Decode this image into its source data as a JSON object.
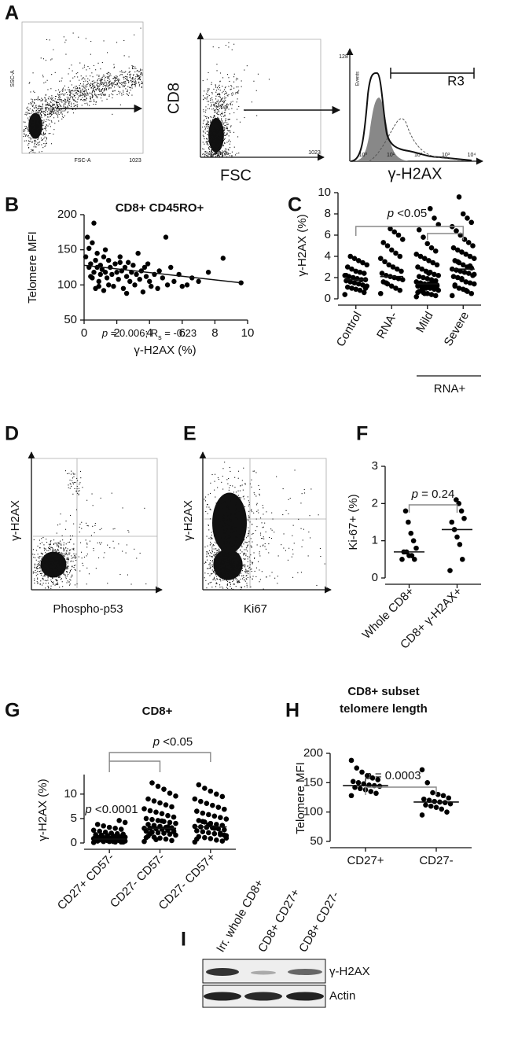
{
  "chart_data": [
    {
      "type": "scatter",
      "panel": "B",
      "title": "CD8+ CD45RO+",
      "x_label": "γ-H2AX (%)",
      "y_label": "Telomere MFI",
      "annotation": "p = 0.006; Rs = -0.23",
      "x": [
        0.1,
        0.2,
        0.3,
        0.3,
        0.4,
        0.5,
        0.5,
        0.6,
        0.6,
        0.7,
        0.7,
        0.8,
        0.8,
        0.9,
        1.0,
        1.0,
        1.1,
        1.2,
        1.2,
        1.3,
        1.4,
        1.5,
        1.5,
        1.6,
        1.7,
        1.8,
        1.9,
        2.0,
        2.1,
        2.2,
        2.3,
        2.4,
        2.5,
        2.6,
        2.7,
        2.8,
        2.9,
        3.0,
        3.1,
        3.2,
        3.3,
        3.4,
        3.5,
        3.6,
        3.7,
        3.8,
        3.9,
        4.0,
        4.1,
        4.3,
        4.5,
        4.6,
        4.8,
        5.0,
        5.1,
        5.3,
        5.5,
        5.8,
        6.0,
        6.3,
        6.6,
        7.0,
        7.6,
        8.5,
        9.6,
        0.4,
        0.9,
        1.3,
        2.2,
        2.6
      ],
      "y": [
        140,
        168,
        152,
        125,
        130,
        160,
        110,
        188,
        118,
        135,
        95,
        145,
        125,
        105,
        128,
        115,
        122,
        92,
        140,
        118,
        110,
        135,
        100,
        125,
        115,
        98,
        130,
        118,
        108,
        140,
        120,
        95,
        125,
        112,
        132,
        105,
        118,
        128,
        100,
        115,
        145,
        108,
        120,
        90,
        125,
        112,
        130,
        105,
        98,
        115,
        95,
        120,
        110,
        168,
        100,
        125,
        105,
        115,
        98,
        100,
        110,
        105,
        118,
        138,
        103,
        112,
        98,
        150,
        132,
        88
      ],
      "trend_line": {
        "x": [
          0,
          9.6
        ],
        "y": [
          128,
          103
        ]
      },
      "xlim": [
        0,
        10
      ],
      "ylim": [
        50,
        200
      ],
      "xticks": [
        0,
        2,
        4,
        6,
        8,
        10
      ],
      "yticks": [
        50,
        100,
        150,
        200
      ],
      "color": "#000000"
    },
    {
      "type": "strip",
      "panel": "C",
      "y_label": "γ-H2AX (%)",
      "categories": [
        "Control",
        "RNA-",
        "Mild",
        "Severe"
      ],
      "values": [
        [
          0.4,
          0.6,
          0.8,
          0.9,
          1.0,
          1.1,
          1.2,
          1.3,
          1.4,
          1.5,
          1.6,
          1.7,
          1.8,
          1.8,
          1.9,
          2.0,
          2.1,
          2.2,
          2.4,
          2.5,
          2.6,
          2.8,
          3.0,
          3.2,
          3.4,
          3.6,
          3.8,
          4.0,
          2.2,
          1.0
        ],
        [
          0.5,
          0.8,
          1.0,
          1.2,
          1.4,
          1.6,
          1.8,
          1.9,
          2.0,
          2.1,
          2.2,
          2.4,
          2.6,
          2.8,
          3.0,
          3.2,
          3.5,
          3.8,
          4.0,
          4.3,
          4.6,
          5.0,
          5.3,
          5.6,
          6.0,
          6.3,
          6.6,
          1.5
        ],
        [
          0.2,
          0.3,
          0.4,
          0.5,
          0.6,
          0.7,
          0.8,
          0.9,
          1.0,
          1.0,
          1.1,
          1.2,
          1.2,
          1.3,
          1.4,
          1.4,
          1.5,
          1.6,
          1.7,
          1.8,
          1.9,
          2.0,
          2.1,
          2.2,
          2.3,
          2.5,
          2.6,
          2.8,
          3.0,
          3.2,
          3.4,
          3.6,
          3.8,
          4.0,
          4.2,
          4.5,
          4.8,
          5.2,
          5.8,
          6.5,
          7.0,
          7.6,
          8.5,
          1.1,
          0.8,
          0.6,
          1.3,
          1.6,
          2.4,
          0.5
        ],
        [
          0.3,
          0.5,
          0.7,
          0.9,
          1.0,
          1.2,
          1.4,
          1.5,
          1.6,
          1.8,
          2.0,
          2.1,
          2.2,
          2.4,
          2.5,
          2.6,
          2.7,
          2.8,
          2.9,
          3.0,
          3.2,
          3.4,
          3.6,
          3.8,
          4.0,
          4.2,
          4.4,
          4.6,
          4.8,
          5.0,
          5.3,
          5.6,
          6.0,
          6.4,
          6.8,
          7.2,
          7.6,
          8.0,
          9.6,
          1.3,
          2.3,
          3.1,
          0.8,
          1.9,
          3.5
        ]
      ],
      "medians": [
        1.8,
        2.1,
        1.4,
        2.8
      ],
      "annotations": [
        "p <0.05"
      ],
      "group_label": "RNA+",
      "ylim": [
        0,
        10
      ],
      "yticks": [
        0,
        2,
        4,
        6,
        8,
        10
      ],
      "color": "#000000"
    },
    {
      "type": "strip",
      "panel": "F",
      "y_label": "Ki-67+ (%)",
      "categories": [
        "Whole CD8+",
        "CD8+ γ-H2AX+"
      ],
      "values": [
        [
          0.5,
          0.5,
          0.6,
          0.6,
          0.7,
          0.7,
          0.8,
          1.0,
          1.2,
          1.5,
          1.8
        ],
        [
          0.2,
          0.5,
          0.9,
          1.1,
          1.3,
          1.5,
          1.6,
          1.8,
          2.0,
          2.1
        ]
      ],
      "medians": [
        0.7,
        1.3
      ],
      "annotations": [
        "p = 0.24"
      ],
      "ylim": [
        0,
        3
      ],
      "yticks": [
        0,
        1,
        2,
        3
      ],
      "color": "#000000"
    },
    {
      "type": "strip",
      "panel": "G",
      "title": "CD8+",
      "y_label": "γ-H2AX (%)",
      "categories": [
        "CD27+ CD57-",
        "CD27- CD57-",
        "CD27- CD57+"
      ],
      "values": [
        [
          0.1,
          0.2,
          0.2,
          0.3,
          0.3,
          0.4,
          0.4,
          0.5,
          0.5,
          0.5,
          0.6,
          0.6,
          0.7,
          0.7,
          0.8,
          0.8,
          0.8,
          0.9,
          0.9,
          1.0,
          1.0,
          1.1,
          1.2,
          1.2,
          1.3,
          1.4,
          1.5,
          1.6,
          1.7,
          1.8,
          1.9,
          2.0,
          2.2,
          2.4,
          2.6,
          2.8,
          3.0,
          3.2,
          3.5,
          3.8,
          4.2,
          4.6,
          0.3,
          0.6,
          1.0,
          1.4,
          0.2,
          0.9
        ],
        [
          0.3,
          0.5,
          0.8,
          1.0,
          1.2,
          1.4,
          1.6,
          1.8,
          2.0,
          2.1,
          2.2,
          2.4,
          2.5,
          2.6,
          2.8,
          2.9,
          3.0,
          3.0,
          3.1,
          3.2,
          3.4,
          3.6,
          3.8,
          4.0,
          4.2,
          4.4,
          4.6,
          4.8,
          5.0,
          5.3,
          5.6,
          6.0,
          6.3,
          6.6,
          7.0,
          7.4,
          7.8,
          8.2,
          8.6,
          9.0,
          9.6,
          10.2,
          11.0,
          11.6,
          12.3,
          1.1,
          2.3,
          3.3,
          4.5,
          0.7,
          1.9
        ],
        [
          0.2,
          0.4,
          0.6,
          0.9,
          1.1,
          1.3,
          1.5,
          1.7,
          1.9,
          2.1,
          2.3,
          2.5,
          2.7,
          2.9,
          3.1,
          3.2,
          3.3,
          3.4,
          3.6,
          3.8,
          4.0,
          4.3,
          4.6,
          4.9,
          5.2,
          5.5,
          5.8,
          6.1,
          6.5,
          6.9,
          7.3,
          7.7,
          8.1,
          8.5,
          9.0,
          9.5,
          10.0,
          10.6,
          11.2,
          11.9,
          1.0,
          2.0,
          3.0,
          3.7,
          4.4,
          0.8,
          1.6
        ]
      ],
      "medians": [
        0.8,
        3.0,
        3.3
      ],
      "annotations": [
        "p <0.05",
        "p <0.0001"
      ],
      "ylim": [
        0,
        14
      ],
      "yticks": [
        0,
        5,
        10
      ],
      "color": "#000000"
    },
    {
      "type": "strip",
      "panel": "H",
      "title": [
        "CD8+ subset",
        "telomere length"
      ],
      "y_label": "Telomere MFI",
      "categories": [
        "CD27+",
        "CD27-"
      ],
      "values": [
        [
          128,
          132,
          135,
          138,
          140,
          142,
          144,
          145,
          146,
          148,
          150,
          152,
          155,
          158,
          162,
          168,
          175,
          188
        ],
        [
          95,
          100,
          105,
          108,
          110,
          112,
          114,
          116,
          117,
          118,
          120,
          122,
          124,
          128,
          130,
          133,
          150,
          172
        ]
      ],
      "medians": [
        145,
        117
      ],
      "annotations": [
        "p = 0.0003"
      ],
      "ylim": [
        50,
        200
      ],
      "yticks": [
        50,
        100,
        150,
        200
      ],
      "color": "#000000"
    }
  ],
  "panel_A": {
    "letter": "A",
    "plot1": {
      "y_label": "SSC-A",
      "x_label": "FSC-A",
      "x_max_label": "1023"
    },
    "plot2": {
      "y_label": "CD8",
      "x_label": "FSC",
      "x_max_label": "1023"
    },
    "plot3": {
      "y_max_label": "128",
      "y_label": "Events",
      "x_label": "γ-H2AX",
      "gate": "R3",
      "x_tick_labels": [
        "10⁰",
        "10¹",
        "10²",
        "10³",
        "10⁴"
      ]
    }
  },
  "panel_D": {
    "letter": "D",
    "y_label": "γ-H2AX",
    "x_label": "Phospho-p53"
  },
  "panel_E": {
    "letter": "E",
    "y_label": "γ-H2AX",
    "x_label": "Ki67"
  },
  "panel_I": {
    "letter": "I",
    "lanes": [
      "Irr. whole CD8+",
      "CD8+ CD27+",
      "CD8+ CD27-"
    ],
    "rows": [
      "γ-H2AX",
      "Actin"
    ]
  }
}
